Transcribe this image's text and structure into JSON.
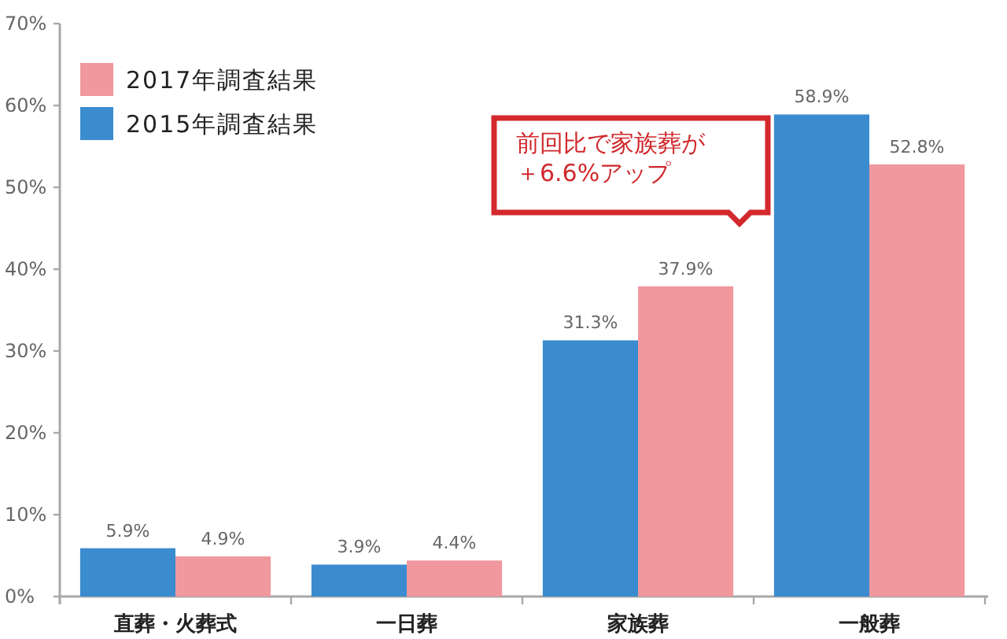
{
  "chart_data": {
    "type": "bar",
    "categories": [
      "直葬・火葬式",
      "一日葬",
      "家族葬",
      "一般葬"
    ],
    "series": [
      {
        "name": "2015年調査結果",
        "color": "#3b8bcf",
        "values": [
          5.9,
          3.9,
          31.3,
          58.9
        ],
        "value_labels": [
          "5.9%",
          "3.9%",
          "31.3%",
          "58.9%"
        ]
      },
      {
        "name": "2017年調査結果",
        "color": "#f0989e",
        "values": [
          4.9,
          4.4,
          37.9,
          52.8
        ],
        "value_labels": [
          "4.9%",
          "4.4%",
          "37.9%",
          "52.8%"
        ]
      }
    ],
    "ylim": [
      0,
      70
    ],
    "yticks": [
      {
        "value": 0,
        "label": "0%"
      },
      {
        "value": 10,
        "label": "10%"
      },
      {
        "value": 20,
        "label": "20%"
      },
      {
        "value": 30,
        "label": "30%"
      },
      {
        "value": 40,
        "label": "40%"
      },
      {
        "value": 50,
        "label": "50%"
      },
      {
        "value": 60,
        "label": "60%"
      },
      {
        "value": 70,
        "label": "70%"
      }
    ],
    "annotations": [
      "前回比で家族葬が＋6.6%アップ"
    ],
    "legend": "top left"
  }
}
